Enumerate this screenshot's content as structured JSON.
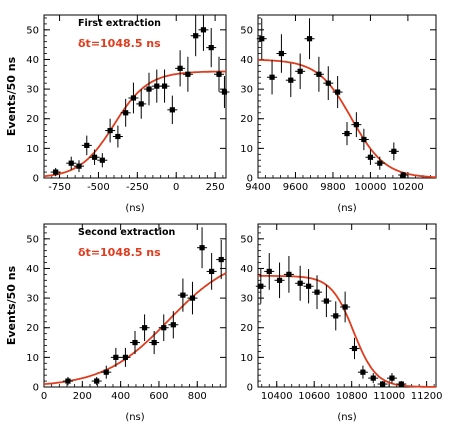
{
  "chart_data": [
    {
      "type": "scatter",
      "title": "First extraction",
      "annotation": "δt=1048.5 ns",
      "xlabel": "(ns)",
      "ylabel": "Events/50 ns",
      "xlim": [
        -850,
        320
      ],
      "ylim": [
        0,
        55
      ],
      "xticks": [
        -750,
        -500,
        -250,
        0,
        250
      ],
      "xtick_labels": [
        "-750",
        "-500",
        "-250",
        "0",
        "250"
      ],
      "yticks": [
        0,
        10,
        20,
        30,
        40,
        50
      ],
      "yticks_labeled": true,
      "fit": {
        "type": "edge",
        "plateau": 36,
        "center": -400,
        "width": 110,
        "rising": true
      },
      "points": [
        {
          "x": -775,
          "y": 2,
          "err": 1.4
        },
        {
          "x": -675,
          "y": 5,
          "err": 2.2
        },
        {
          "x": -625,
          "y": 4,
          "err": 2.0
        },
        {
          "x": -575,
          "y": 11,
          "err": 3.3
        },
        {
          "x": -525,
          "y": 7,
          "err": 2.6
        },
        {
          "x": -475,
          "y": 6,
          "err": 2.4
        },
        {
          "x": -425,
          "y": 16,
          "err": 4.0
        },
        {
          "x": -375,
          "y": 14,
          "err": 3.7
        },
        {
          "x": -325,
          "y": 22,
          "err": 4.7
        },
        {
          "x": -275,
          "y": 27,
          "err": 5.2
        },
        {
          "x": -225,
          "y": 25,
          "err": 5.0
        },
        {
          "x": -175,
          "y": 30,
          "err": 5.5
        },
        {
          "x": -125,
          "y": 31,
          "err": 5.6
        },
        {
          "x": -75,
          "y": 31,
          "err": 5.6
        },
        {
          "x": -25,
          "y": 23,
          "err": 4.8
        },
        {
          "x": 25,
          "y": 37,
          "err": 6.1
        },
        {
          "x": 75,
          "y": 35,
          "err": 5.9
        },
        {
          "x": 125,
          "y": 48,
          "err": 6.9
        },
        {
          "x": 175,
          "y": 50,
          "err": 7.1
        },
        {
          "x": 225,
          "y": 44,
          "err": 6.6
        },
        {
          "x": 275,
          "y": 35,
          "err": 5.9
        },
        {
          "x": 310,
          "y": 29,
          "err": 5.4
        }
      ]
    },
    {
      "type": "scatter",
      "title": "",
      "xlabel": "(ns)",
      "ylabel": "",
      "xlim": [
        9400,
        10350
      ],
      "ylim": [
        0,
        55
      ],
      "xticks": [
        9400,
        9600,
        9800,
        10000,
        10200
      ],
      "xtick_labels": [
        "9400",
        "9600",
        "9800",
        "10000",
        "10200"
      ],
      "yticks": [
        0,
        10,
        20,
        30,
        40,
        50
      ],
      "yticks_labeled": true,
      "fit": {
        "type": "edge",
        "plateau": 40,
        "center": 9900,
        "width": 90,
        "rising": false
      },
      "points": [
        {
          "x": 9420,
          "y": 47,
          "err": 6.9
        },
        {
          "x": 9475,
          "y": 34,
          "err": 5.8
        },
        {
          "x": 9525,
          "y": 42,
          "err": 6.5
        },
        {
          "x": 9575,
          "y": 33,
          "err": 5.7
        },
        {
          "x": 9625,
          "y": 36,
          "err": 6.0
        },
        {
          "x": 9675,
          "y": 47,
          "err": 6.9
        },
        {
          "x": 9725,
          "y": 35,
          "err": 5.9
        },
        {
          "x": 9775,
          "y": 32,
          "err": 5.7
        },
        {
          "x": 9825,
          "y": 29,
          "err": 5.4
        },
        {
          "x": 9875,
          "y": 15,
          "err": 3.9
        },
        {
          "x": 9925,
          "y": 18,
          "err": 4.2
        },
        {
          "x": 9965,
          "y": 13,
          "err": 3.6
        },
        {
          "x": 10000,
          "y": 7,
          "err": 2.6
        },
        {
          "x": 10050,
          "y": 5,
          "err": 2.2
        },
        {
          "x": 10125,
          "y": 9,
          "err": 3.0
        },
        {
          "x": 10175,
          "y": 1,
          "err": 1.0
        }
      ]
    },
    {
      "type": "scatter",
      "title": "Second extraction",
      "annotation": "δt=1048.5 ns",
      "xlabel": "(ns)",
      "ylabel": "Events/50 ns",
      "xlim": [
        0,
        950
      ],
      "ylim": [
        0,
        55
      ],
      "xticks": [
        0,
        200,
        400,
        600,
        800
      ],
      "xtick_labels": [
        "0",
        "200",
        "400",
        "600",
        "800"
      ],
      "yticks": [
        0,
        10,
        20,
        30,
        40,
        50
      ],
      "yticks_labeled": true,
      "fit": {
        "type": "edge",
        "plateau": 45,
        "center": 650,
        "width": 170,
        "rising": true
      },
      "points": [
        {
          "x": 125,
          "y": 2,
          "err": 1.4
        },
        {
          "x": 275,
          "y": 2,
          "err": 1.4
        },
        {
          "x": 325,
          "y": 5,
          "err": 2.2
        },
        {
          "x": 375,
          "y": 10,
          "err": 3.2
        },
        {
          "x": 425,
          "y": 10,
          "err": 3.2
        },
        {
          "x": 475,
          "y": 15,
          "err": 3.9
        },
        {
          "x": 525,
          "y": 20,
          "err": 4.5
        },
        {
          "x": 575,
          "y": 15,
          "err": 3.9
        },
        {
          "x": 625,
          "y": 20,
          "err": 4.5
        },
        {
          "x": 675,
          "y": 21,
          "err": 4.6
        },
        {
          "x": 725,
          "y": 31,
          "err": 5.6
        },
        {
          "x": 775,
          "y": 30,
          "err": 5.5
        },
        {
          "x": 825,
          "y": 47,
          "err": 6.9
        },
        {
          "x": 875,
          "y": 39,
          "err": 6.2
        },
        {
          "x": 925,
          "y": 43,
          "err": 6.6
        }
      ]
    },
    {
      "type": "scatter",
      "title": "",
      "xlabel": "(ns)",
      "ylabel": "",
      "xlim": [
        10300,
        11250
      ],
      "ylim": [
        0,
        55
      ],
      "xticks": [
        10400,
        10600,
        10800,
        11000,
        11200
      ],
      "xtick_labels": [
        "10400",
        "10600",
        "10800",
        "11000",
        "11200"
      ],
      "yticks": [
        0,
        10,
        20,
        30,
        40,
        50
      ],
      "yticks_labeled": true,
      "fit": {
        "type": "edge",
        "plateau": 37.5,
        "center": 10810,
        "width": 60,
        "rising": false
      },
      "points": [
        {
          "x": 10315,
          "y": 34,
          "err": 5.8
        },
        {
          "x": 10360,
          "y": 39,
          "err": 6.2
        },
        {
          "x": 10415,
          "y": 36,
          "err": 6.0
        },
        {
          "x": 10465,
          "y": 38,
          "err": 6.2
        },
        {
          "x": 10525,
          "y": 35,
          "err": 5.9
        },
        {
          "x": 10570,
          "y": 34,
          "err": 5.8
        },
        {
          "x": 10615,
          "y": 32,
          "err": 5.7
        },
        {
          "x": 10665,
          "y": 29,
          "err": 5.4
        },
        {
          "x": 10715,
          "y": 24,
          "err": 4.9
        },
        {
          "x": 10765,
          "y": 27,
          "err": 5.2
        },
        {
          "x": 10815,
          "y": 13,
          "err": 3.6
        },
        {
          "x": 10860,
          "y": 5,
          "err": 2.2
        },
        {
          "x": 10915,
          "y": 3,
          "err": 1.7
        },
        {
          "x": 10965,
          "y": 1,
          "err": 1.0
        },
        {
          "x": 11015,
          "y": 3,
          "err": 1.7
        },
        {
          "x": 11065,
          "y": 1,
          "err": 1.0
        }
      ]
    }
  ],
  "colors": {
    "fit_line": "#e03c1e",
    "annotation": "#e03c1e",
    "markers": "#000000",
    "axes": "#000000"
  }
}
